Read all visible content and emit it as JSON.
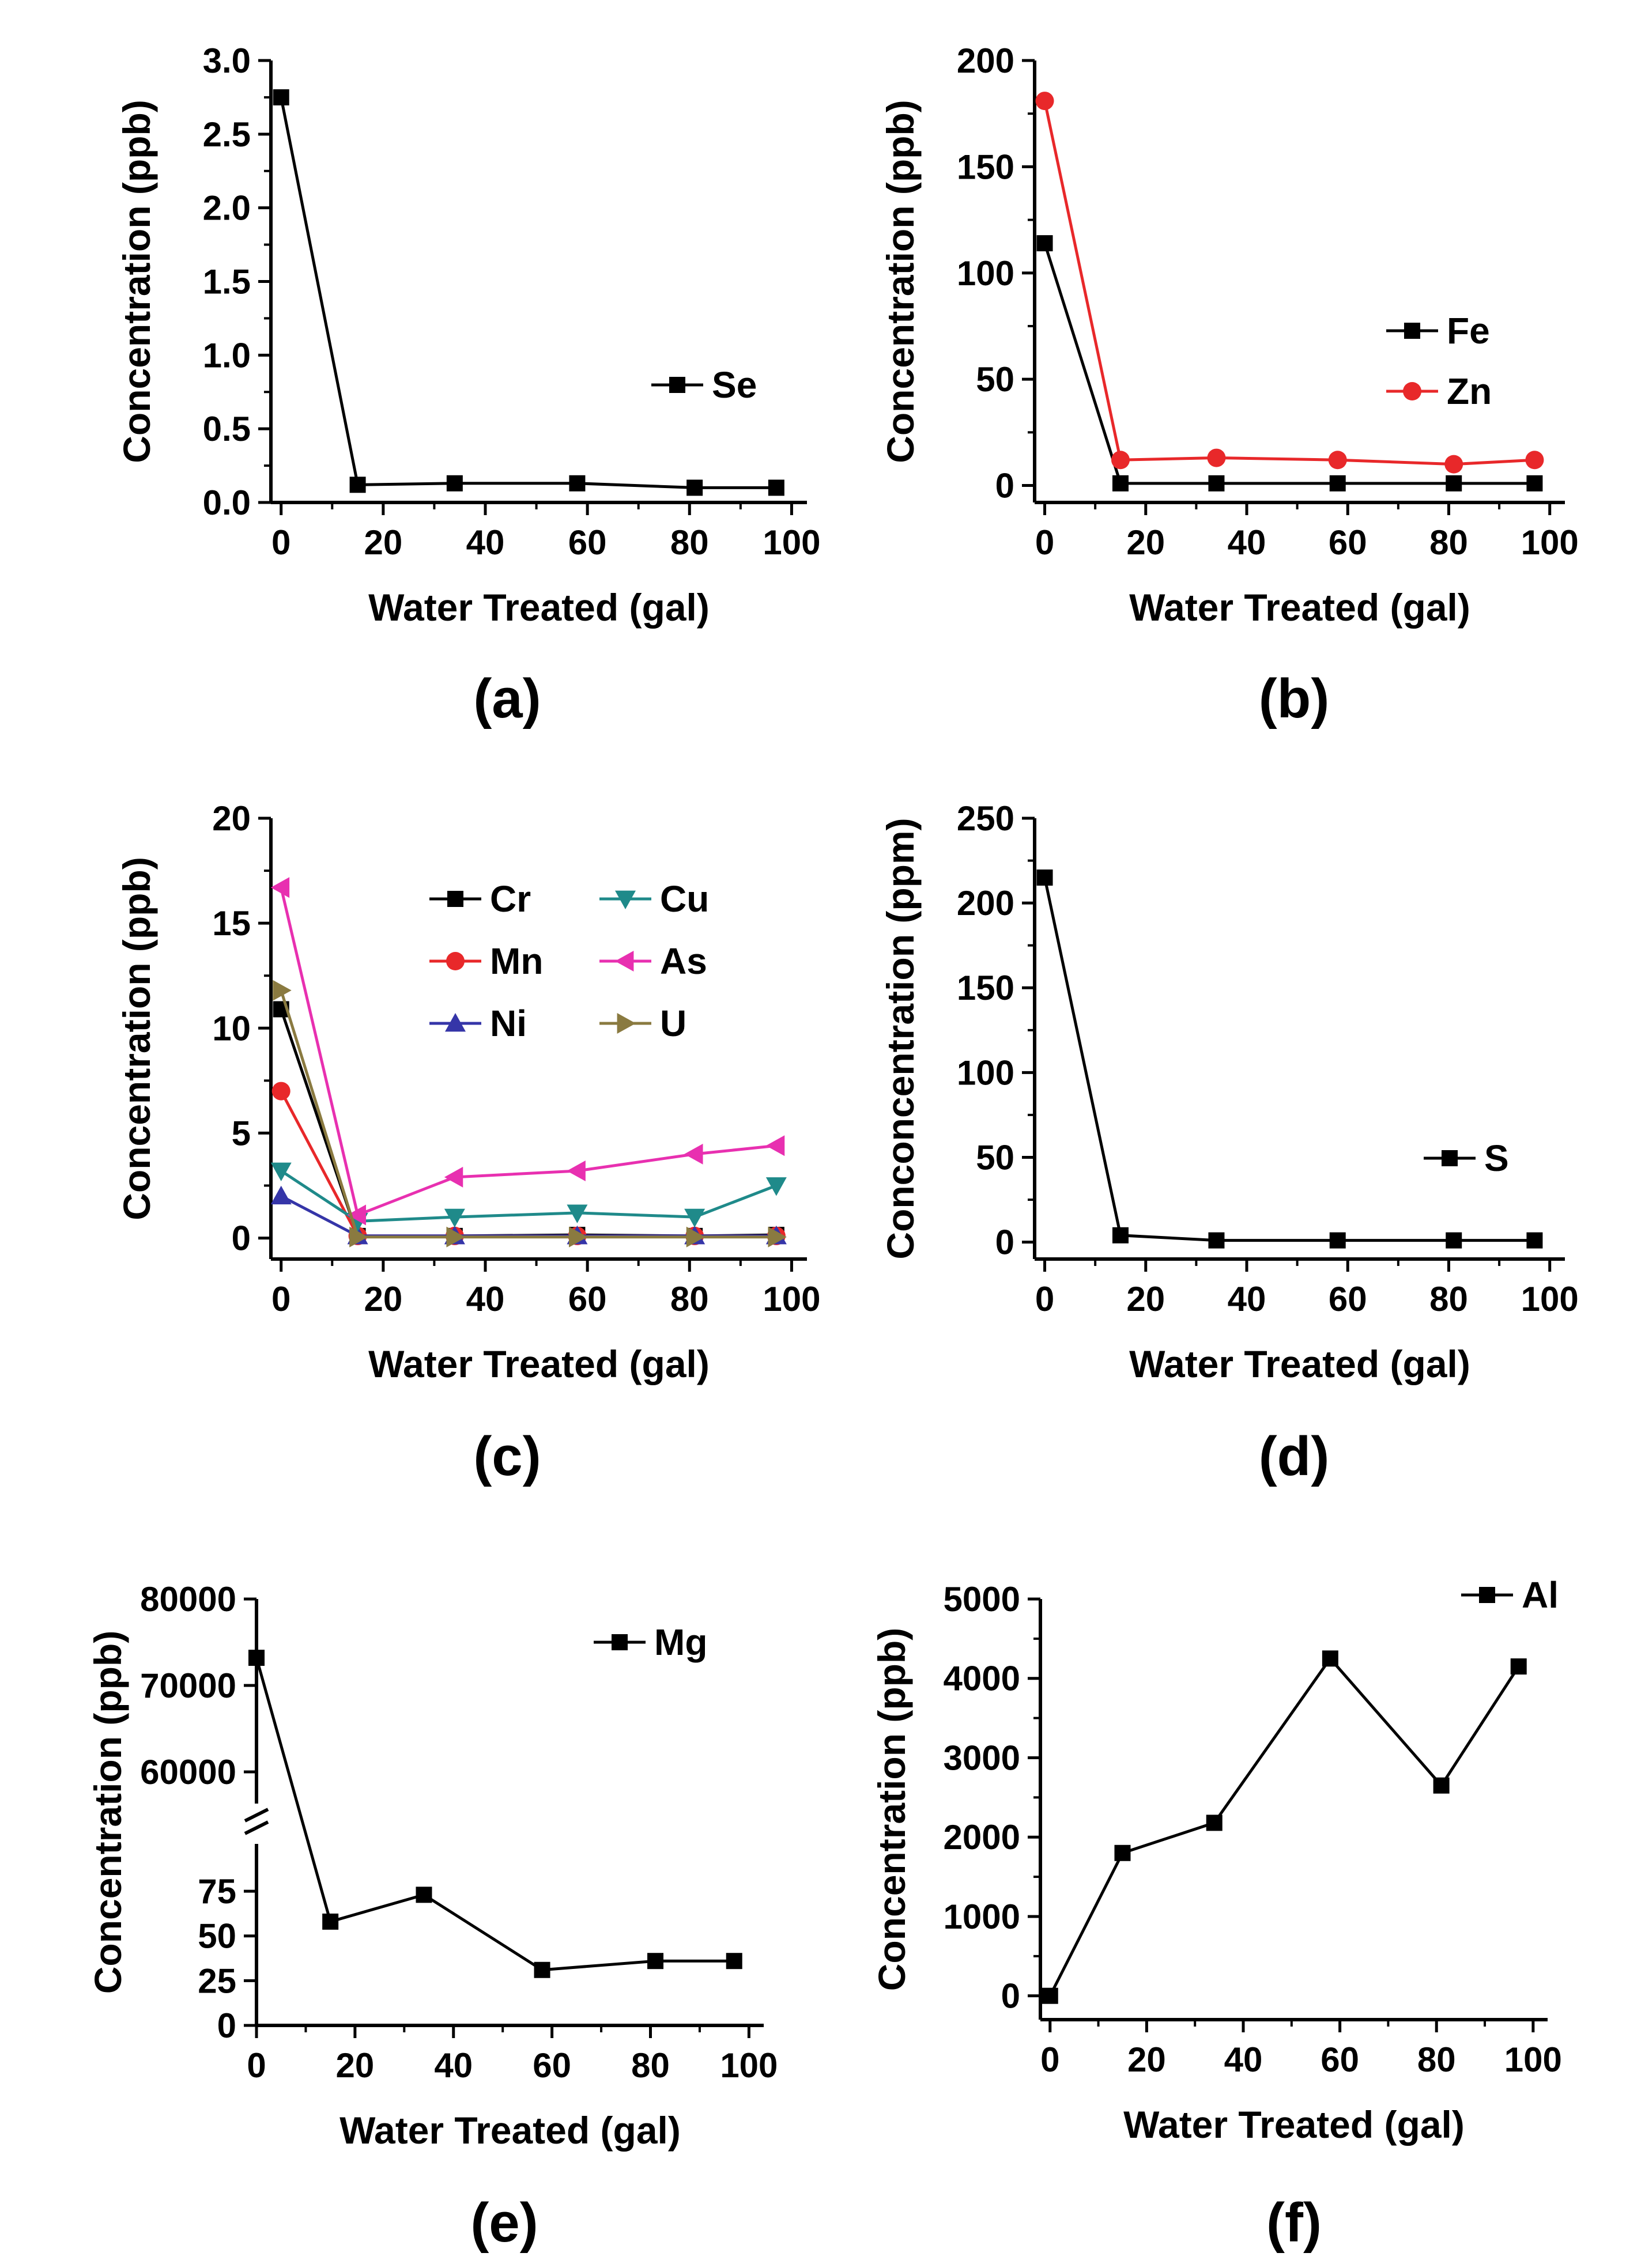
{
  "figure": {
    "panels": [
      {
        "id": "a",
        "label": "(a)"
      },
      {
        "id": "b",
        "label": "(b)"
      },
      {
        "id": "c",
        "label": "(c)"
      },
      {
        "id": "d",
        "label": "(d)"
      },
      {
        "id": "e",
        "label": "(e)"
      },
      {
        "id": "f",
        "label": "(f)"
      }
    ]
  },
  "colors": {
    "black": "#000000",
    "red": "#e8282a",
    "blue": "#3535a8",
    "teal": "#1f8a8a",
    "magenta": "#e830b0",
    "olive": "#8a7a40"
  },
  "chart_data": [
    {
      "id": "a",
      "type": "line",
      "panel_label": "(a)",
      "xlabel": "Water Treated (gal)",
      "ylabel": "Concentration (ppb)",
      "xlim": [
        -2,
        103
      ],
      "ylim": [
        0,
        3.0
      ],
      "xticks": [
        0,
        20,
        40,
        60,
        80,
        100
      ],
      "yticks": [
        0.0,
        0.5,
        1.0,
        1.5,
        2.0,
        2.5,
        3.0
      ],
      "ytick_labels": [
        "0.0",
        "0.5",
        "1.0",
        "1.5",
        "2.0",
        "2.5",
        "3.0"
      ],
      "x": [
        0,
        15,
        34,
        58,
        81,
        97
      ],
      "series": [
        {
          "name": "Se",
          "color": "#000000",
          "marker": "square",
          "values": [
            2.75,
            0.12,
            0.13,
            0.13,
            0.1,
            0.1
          ]
        }
      ],
      "legend_position": "center-right"
    },
    {
      "id": "b",
      "type": "line",
      "panel_label": "(b)",
      "xlabel": "Water Treated (gal)",
      "ylabel": "Concentration (ppb)",
      "xlim": [
        -2,
        103
      ],
      "ylim": [
        -8,
        200
      ],
      "xticks": [
        0,
        20,
        40,
        60,
        80,
        100
      ],
      "yticks": [
        0,
        50,
        100,
        150,
        200
      ],
      "ytick_labels": [
        "0",
        "50",
        "100",
        "150",
        "200"
      ],
      "x": [
        0,
        15,
        34,
        58,
        81,
        97
      ],
      "series": [
        {
          "name": "Fe",
          "color": "#000000",
          "marker": "square",
          "values": [
            114,
            1,
            1,
            1,
            1,
            1
          ]
        },
        {
          "name": "Zn",
          "color": "#e8282a",
          "marker": "circle",
          "values": [
            181,
            12,
            13,
            12,
            10,
            12
          ]
        }
      ],
      "legend_position": "center-right"
    },
    {
      "id": "c",
      "type": "line",
      "panel_label": "(c)",
      "xlabel": "Water Treated (gal)",
      "ylabel": "Concentration (ppb)",
      "xlim": [
        -2,
        103
      ],
      "ylim": [
        -1,
        20
      ],
      "xticks": [
        0,
        20,
        40,
        60,
        80,
        100
      ],
      "yticks": [
        0,
        5,
        10,
        15,
        20
      ],
      "ytick_labels": [
        "0",
        "5",
        "10",
        "15",
        "20"
      ],
      "x": [
        0,
        15,
        34,
        58,
        81,
        97
      ],
      "series": [
        {
          "name": "Cr",
          "color": "#000000",
          "marker": "square",
          "values": [
            10.9,
            0.1,
            0.1,
            0.15,
            0.1,
            0.15
          ]
        },
        {
          "name": "Mn",
          "color": "#e8282a",
          "marker": "circle",
          "values": [
            7.0,
            0.1,
            0.1,
            0.1,
            0.1,
            0.1
          ]
        },
        {
          "name": "Ni",
          "color": "#3535a8",
          "marker": "triangle-up",
          "values": [
            2.0,
            0.1,
            0.1,
            0.1,
            0.1,
            0.1
          ]
        },
        {
          "name": "Cu",
          "color": "#1f8a8a",
          "marker": "triangle-down",
          "values": [
            3.2,
            0.8,
            1.0,
            1.2,
            1.0,
            2.5
          ]
        },
        {
          "name": "As",
          "color": "#e830b0",
          "marker": "triangle-left",
          "values": [
            16.7,
            1.1,
            2.9,
            3.2,
            4.0,
            4.4
          ]
        },
        {
          "name": "U",
          "color": "#8a7a40",
          "marker": "triangle-right",
          "values": [
            11.8,
            0.05,
            0.05,
            0.05,
            0.05,
            0.05
          ]
        }
      ],
      "legend_position": "top-right"
    },
    {
      "id": "d",
      "type": "line",
      "panel_label": "(d)",
      "xlabel": "Water Treated (gal)",
      "ylabel": "Conconcentration (ppm)",
      "xlim": [
        -2,
        103
      ],
      "ylim": [
        -10,
        250
      ],
      "xticks": [
        0,
        20,
        40,
        60,
        80,
        100
      ],
      "yticks": [
        0,
        50,
        100,
        150,
        200,
        250
      ],
      "ytick_labels": [
        "0",
        "50",
        "100",
        "150",
        "200",
        "250"
      ],
      "x": [
        0,
        15,
        34,
        58,
        81,
        97
      ],
      "series": [
        {
          "name": "S",
          "color": "#000000",
          "marker": "square",
          "values": [
            215,
            4,
            1,
            1,
            1,
            1
          ]
        }
      ],
      "legend_position": "center-right"
    },
    {
      "id": "e",
      "type": "line",
      "panel_label": "(e)",
      "xlabel": "Water Treated (gal)",
      "ylabel": "Concentration (ppb)",
      "xlim": [
        0,
        103
      ],
      "broken_axis": {
        "lower": [
          0,
          95
        ],
        "upper": [
          57000,
          80000
        ]
      },
      "xticks": [
        0,
        20,
        40,
        60,
        80,
        100
      ],
      "yticks_lower": [
        0,
        25,
        50,
        75
      ],
      "ytick_labels_lower": [
        "0",
        "25",
        "50",
        "75"
      ],
      "yticks_upper": [
        60000,
        70000,
        80000
      ],
      "ytick_labels_upper": [
        "60000",
        "70000",
        "80000"
      ],
      "x": [
        0,
        15,
        34,
        58,
        81,
        97
      ],
      "series": [
        {
          "name": "Mg",
          "color": "#000000",
          "marker": "square",
          "values": [
            73200,
            58,
            73,
            31,
            36,
            36
          ]
        }
      ],
      "legend_position": "top-right"
    },
    {
      "id": "f",
      "type": "line",
      "panel_label": "(f)",
      "xlabel": "Water Treated (gal)",
      "ylabel": "Concentration (ppb)",
      "xlim": [
        -2,
        103
      ],
      "ylim": [
        -300,
        5000
      ],
      "xticks": [
        0,
        20,
        40,
        60,
        80,
        100
      ],
      "yticks": [
        0,
        1000,
        2000,
        3000,
        4000,
        5000
      ],
      "ytick_labels": [
        "0",
        "1000",
        "2000",
        "3000",
        "4000",
        "5000"
      ],
      "x": [
        0,
        15,
        34,
        58,
        81,
        97
      ],
      "series": [
        {
          "name": "Al",
          "color": "#000000",
          "marker": "square",
          "values": [
            0,
            1800,
            2180,
            4250,
            2650,
            4150
          ]
        }
      ],
      "legend_position": "top-right"
    }
  ]
}
